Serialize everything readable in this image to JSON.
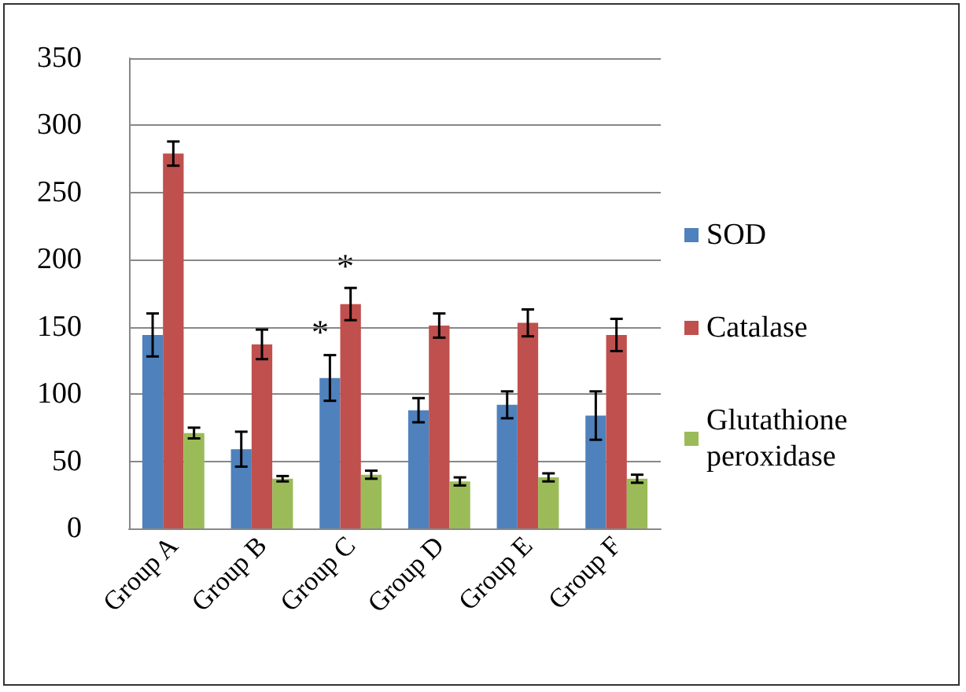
{
  "chart_data": {
    "type": "bar",
    "categories": [
      "Group A",
      "Group B",
      "Group C",
      "Group D",
      "Group E",
      "Group F"
    ],
    "series": [
      {
        "name": "SOD",
        "color": "#4f81bd",
        "values": [
          144,
          59,
          112,
          88,
          92,
          84
        ],
        "errors": [
          16,
          13,
          17,
          9,
          10,
          18
        ]
      },
      {
        "name": "Catalase",
        "color": "#c0504d",
        "values": [
          279,
          137,
          167,
          151,
          153,
          144
        ],
        "errors": [
          9,
          11,
          12,
          9,
          10,
          12
        ]
      },
      {
        "name": "Glutathione peroxidase",
        "color": "#9bbb59",
        "values": [
          71,
          37,
          40,
          35,
          38,
          37
        ],
        "errors": [
          4,
          2,
          3,
          3,
          3,
          3
        ]
      }
    ],
    "annotations": [
      "*",
      "*"
    ],
    "ylim": [
      0,
      350
    ],
    "yticks": [
      0,
      50,
      100,
      150,
      200,
      250,
      300,
      350
    ],
    "grid": "y",
    "legend": "right"
  }
}
